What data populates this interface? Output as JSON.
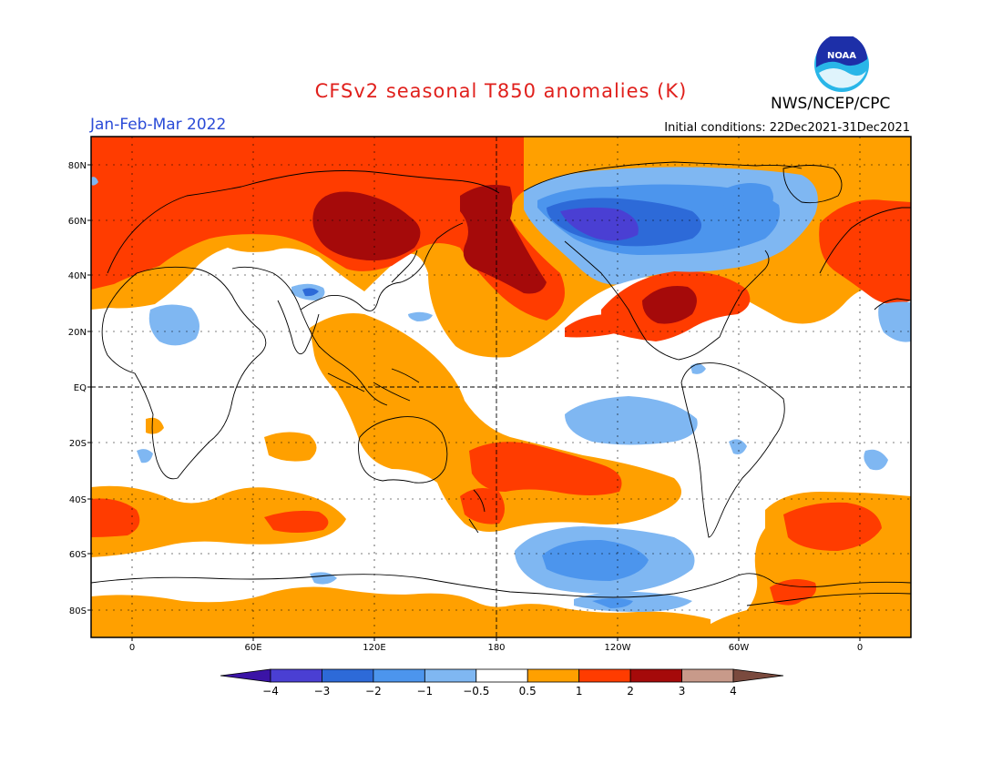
{
  "title": "CFSv2 seasonal T850 anomalies (K)",
  "agency": "NWS/NCEP/CPC",
  "logo_text": "NOAA",
  "season": "Jan-Feb-Mar 2022",
  "initial_conditions": "Initial conditions: 22Dec2021-31Dec2021",
  "lat_labels": [
    "80N",
    "60N",
    "40N",
    "20N",
    "EQ",
    "20S",
    "40S",
    "60S",
    "80S"
  ],
  "lon_labels": [
    "0",
    "60E",
    "120E",
    "180",
    "120W",
    "60W",
    "0"
  ],
  "colorbar": {
    "labels": [
      "-4",
      "-3",
      "-2",
      "-1",
      "-0.5",
      "0.5",
      "1",
      "2",
      "3",
      "4"
    ],
    "colors": [
      "#3b14a6",
      "#4a3fd3",
      "#2d6ad8",
      "#4c95ed",
      "#7fb7f2",
      "#ffffff",
      "#ffa000",
      "#ff3c00",
      "#a50a0a",
      "#c89a8a",
      "#7a4a3e"
    ]
  },
  "colors": {
    "cold_strong": "#4a3fd3",
    "cold": "#2d6ad8",
    "cool": "#4c95ed",
    "cool_light": "#7fb7f2",
    "warm_light": "#ffa000",
    "warm": "#ff3c00",
    "warm_strong": "#a50a0a"
  }
}
